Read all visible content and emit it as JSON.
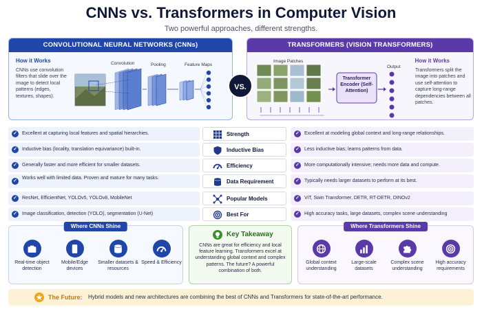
{
  "header": {
    "title": "CNNs vs. Transformers in Computer Vision",
    "subtitle": "Two powerful approaches, different strengths."
  },
  "cnn_panel": {
    "heading": "CONVOLUTIONAL NEURAL NETWORKS (CNNs)",
    "how_title": "How it Works",
    "how_text": "CNNs use convolution filters that slide over the image to detect local patterns (edges, textures, shapes).",
    "label_convolution": "Convolution",
    "label_pooling": "Pooling",
    "label_feature_maps": "Feature Maps"
  },
  "vs_label": "VS.",
  "tf_panel": {
    "heading": "TRANSFORMERS (VISION TRANSFORMERS)",
    "how_title": "How it Works",
    "how_text": "Transformers split the image into patches and use self-attention to capture long-range dependencies between all patches.",
    "label_patches": "Image Patches",
    "encoder_text": "Transformer Encoder (Self-Attention)",
    "label_output": "Output"
  },
  "comparison": [
    {
      "label": "Strength",
      "icon": "grid-icon",
      "cnn": "Excellent at capturing local features and spatial hierarchies.",
      "tf": "Excellent at modeling global context and long-range relationships."
    },
    {
      "label": "Inductive Bias",
      "icon": "shield-icon",
      "cnn": "Inductive bias (locality, translation equivariance) built-in.",
      "tf": "Less inductive bias; learns patterns from data."
    },
    {
      "label": "Efficiency",
      "icon": "speedometer-icon",
      "cnn": "Generally faster and more efficient for smaller datasets.",
      "tf": "More computationally intensive; needs more data and compute."
    },
    {
      "label": "Data Requirement",
      "icon": "database-icon",
      "cnn": "Works well with limited data. Proven and mature for many tasks.",
      "tf": "Typically needs larger datasets to perform at its best."
    },
    {
      "label": "Popular Models",
      "icon": "network-icon",
      "cnn": "ResNet, EfficientNet, YOLOv5, YOLOv8, MobileNet",
      "tf": "ViT, Swin Transformer, DETR, RT-DETR, DINOv2"
    },
    {
      "label": "Best For",
      "icon": "target-icon",
      "cnn": "Image classification, detection (YOLO), segmentation (U-Net)",
      "tf": "High accuracy tasks, large datasets, complex scene understanding"
    }
  ],
  "cnn_shine": {
    "title": "Where CNNs Shine",
    "items": [
      {
        "label": "Real-time object detection",
        "icon": "camera-icon"
      },
      {
        "label": "Mobile/Edge devices",
        "icon": "phone-icon"
      },
      {
        "label": "Smaller datasets & resources",
        "icon": "database-icon"
      },
      {
        "label": "Speed & Efficiency",
        "icon": "speedometer-icon"
      }
    ]
  },
  "takeaway": {
    "title": "Key Takeaway",
    "text": "CNNs are great for efficiency and local feature learning. Transformers excel at understanding global context and complex patterns. The future? A powerful combination of both."
  },
  "tf_shine": {
    "title": "Where Transformers Shine",
    "items": [
      {
        "label": "Global context understanding",
        "icon": "globe-icon"
      },
      {
        "label": "Large-scale datasets",
        "icon": "bar-chart-icon"
      },
      {
        "label": "Complex scene understanding",
        "icon": "puzzle-icon"
      },
      {
        "label": "High accuracy requirements",
        "icon": "target-icon"
      }
    ]
  },
  "future": {
    "label": "The Future:",
    "text": "Hybrid models and new architectures are combining the best of CNNs and Transformers for state-of-the-art performance."
  },
  "colors": {
    "cnn_accent": "#1f46a8",
    "tf_accent": "#5a3aa8",
    "takeaway_accent": "#3d8f2b",
    "future_accent": "#f0a419"
  }
}
